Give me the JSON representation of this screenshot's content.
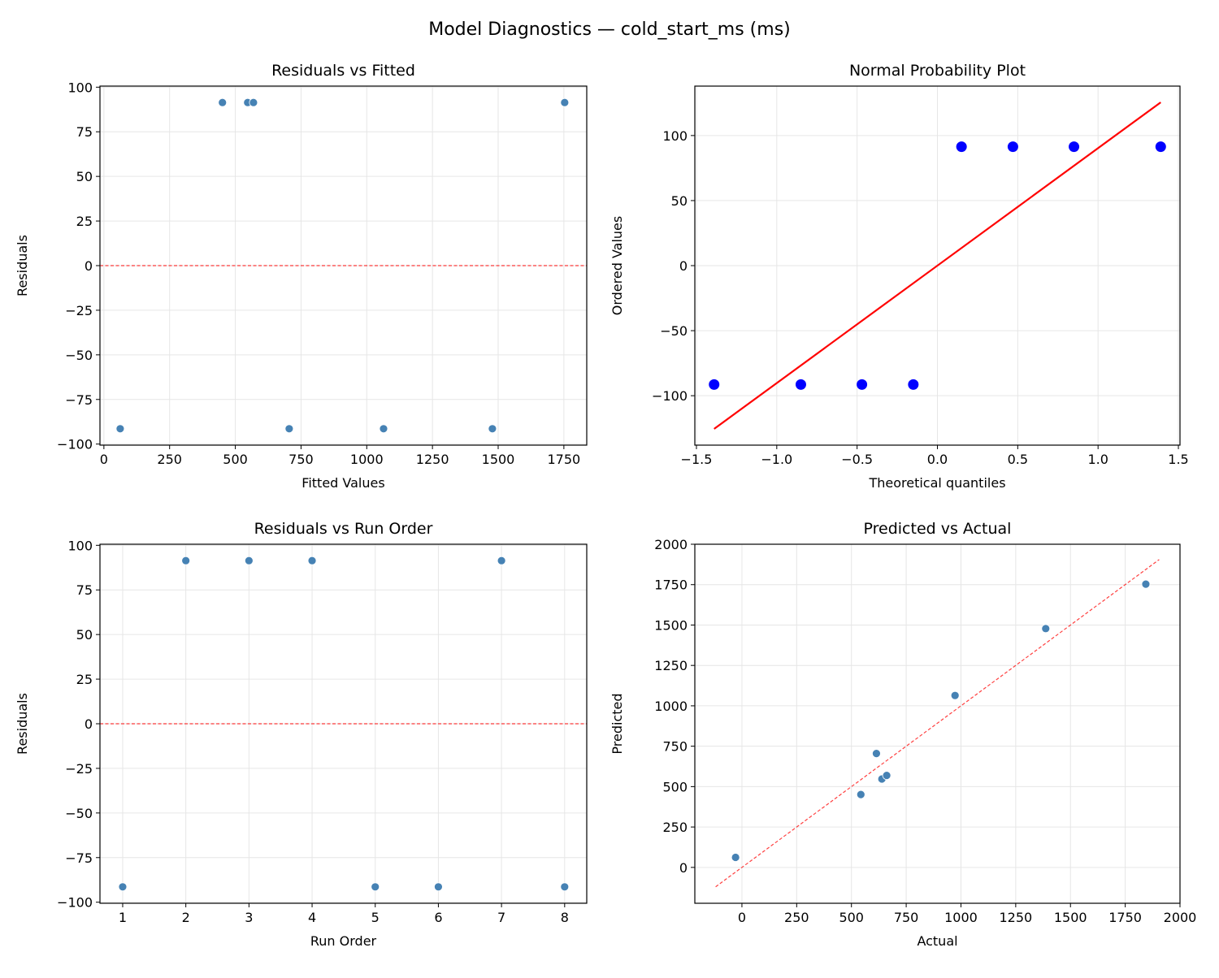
{
  "suptitle": "Model Diagnostics — cold_start_ms (ms)",
  "colors": {
    "point": "#4682b4",
    "qq_point": "#0000ff",
    "line": "#ff0000",
    "grid": "#e6e6e6"
  },
  "chart_data": [
    {
      "type": "scatter",
      "title": "Residuals vs Fitted",
      "xlabel": "Fitted Values",
      "ylabel": "Residuals",
      "xlim": [
        -15,
        1837
      ],
      "ylim": [
        -100.6,
        100.6
      ],
      "xticks": [
        0,
        250,
        500,
        750,
        1000,
        1250,
        1500,
        1750
      ],
      "yticks": [
        -100,
        -75,
        -50,
        -25,
        0,
        25,
        50,
        75,
        100
      ],
      "grid": true,
      "x": [
        62,
        451,
        547,
        569,
        705,
        1064,
        1753,
        1478
      ],
      "y": [
        -91.4,
        91.4,
        91.4,
        91.4,
        -91.4,
        -91.4,
        91.4,
        -91.4
      ],
      "reference_line": {
        "type": "horizontal",
        "y": 0,
        "style": "dashed"
      }
    },
    {
      "type": "scatter",
      "title": "Normal Probability Plot",
      "xlabel": "Theoretical quantiles",
      "ylabel": "Ordered Values",
      "xlim": [
        -1.51,
        1.51
      ],
      "ylim": [
        -138,
        138
      ],
      "xticks": [
        -1.5,
        -1.0,
        -0.5,
        0.0,
        0.5,
        1.0,
        1.5
      ],
      "yticks": [
        -100,
        -50,
        0,
        50,
        100
      ],
      "grid": true,
      "x": [
        -1.39,
        -0.85,
        -0.47,
        -0.15,
        0.15,
        0.47,
        0.85,
        1.39
      ],
      "y": [
        -91.4,
        -91.4,
        -91.4,
        -91.4,
        91.4,
        91.4,
        91.4,
        91.4
      ],
      "reference_line": {
        "type": "fit",
        "x": [
          -1.39,
          1.39
        ],
        "y": [
          -125.5,
          125.5
        ],
        "style": "solid"
      }
    },
    {
      "type": "scatter",
      "title": "Residuals vs Run Order",
      "xlabel": "Run Order",
      "ylabel": "Residuals",
      "xlim": [
        0.64,
        8.35
      ],
      "ylim": [
        -100.6,
        100.6
      ],
      "xticks": [
        1,
        2,
        3,
        4,
        5,
        6,
        7,
        8
      ],
      "yticks": [
        -100,
        -75,
        -50,
        -25,
        0,
        25,
        50,
        75,
        100
      ],
      "grid": true,
      "x": [
        1,
        2,
        3,
        4,
        5,
        6,
        7,
        8
      ],
      "y": [
        -91.4,
        91.4,
        91.4,
        91.4,
        -91.4,
        -91.4,
        91.4,
        -91.4
      ],
      "reference_line": {
        "type": "horizontal",
        "y": 0,
        "style": "dashed"
      }
    },
    {
      "type": "scatter",
      "title": "Predicted vs Actual",
      "xlabel": "Actual",
      "ylabel": "Predicted",
      "xlim": [
        -215,
        2000
      ],
      "ylim": [
        -222,
        2000
      ],
      "xticks": [
        0,
        250,
        500,
        750,
        1000,
        1250,
        1500,
        1750,
        2000
      ],
      "yticks": [
        0,
        250,
        500,
        750,
        1000,
        1250,
        1500,
        1750,
        2000
      ],
      "grid": true,
      "x": [
        -29,
        543,
        639,
        661,
        614,
        973,
        1844,
        1387
      ],
      "y": [
        62,
        451,
        547,
        569,
        705,
        1064,
        1753,
        1478
      ],
      "reference_line": {
        "type": "identity",
        "x": [
          -120,
          1905
        ],
        "y": [
          -120,
          1905
        ],
        "style": "dashed"
      }
    }
  ]
}
